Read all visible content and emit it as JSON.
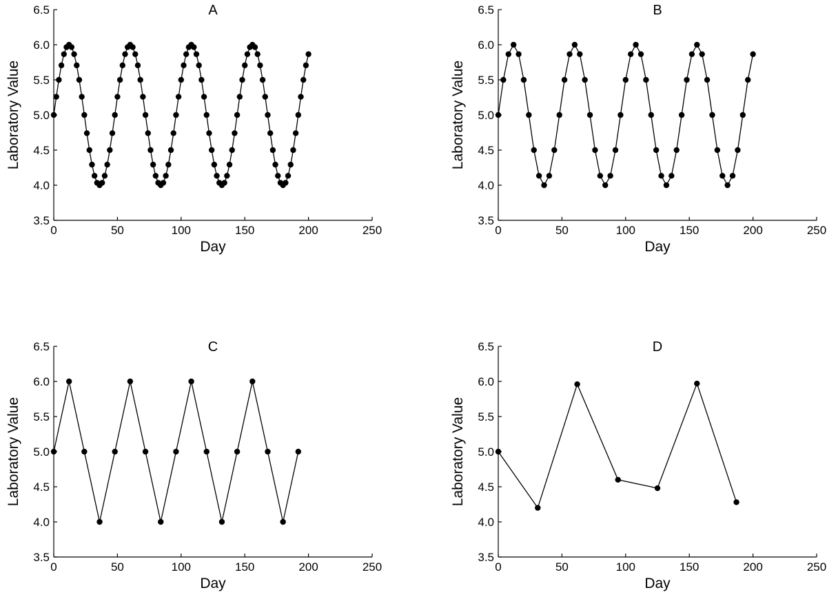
{
  "chart_data": [
    {
      "type": "line",
      "title": "A",
      "xlabel": "Day",
      "ylabel": "Laboratory Value",
      "xlim": [
        0,
        250
      ],
      "ylim": [
        3.5,
        6.5
      ],
      "xticks": [
        0,
        50,
        100,
        150,
        200,
        250
      ],
      "yticks": [
        "3.5",
        "4.0",
        "4.5",
        "5.0",
        "5.5",
        "6.0",
        "6.5"
      ],
      "grid": false,
      "x": [
        0,
        2,
        4,
        6,
        8,
        10,
        12,
        14,
        16,
        18,
        20,
        22,
        24,
        26,
        28,
        30,
        32,
        34,
        36,
        38,
        40,
        42,
        44,
        46,
        48,
        50,
        52,
        54,
        56,
        58,
        60,
        62,
        64,
        66,
        68,
        70,
        72,
        74,
        76,
        78,
        80,
        82,
        84,
        86,
        88,
        90,
        92,
        94,
        96,
        98,
        100,
        102,
        104,
        106,
        108,
        110,
        112,
        114,
        116,
        118,
        120,
        122,
        124,
        126,
        128,
        130,
        132,
        134,
        136,
        138,
        140,
        142,
        144,
        146,
        148,
        150,
        152,
        154,
        156,
        158,
        160,
        162,
        164,
        166,
        168,
        170,
        172,
        174,
        176,
        178,
        180,
        182,
        184,
        186,
        188,
        190,
        192,
        194,
        196,
        198,
        200
      ],
      "values": [
        5.0,
        5.259,
        5.5,
        5.707,
        5.866,
        5.966,
        6.0,
        5.966,
        5.866,
        5.707,
        5.5,
        5.259,
        5.0,
        4.741,
        4.5,
        4.293,
        4.134,
        4.034,
        4.0,
        4.034,
        4.134,
        4.293,
        4.5,
        4.741,
        5.0,
        5.259,
        5.5,
        5.707,
        5.866,
        5.966,
        6.0,
        5.966,
        5.866,
        5.707,
        5.5,
        5.259,
        5.0,
        4.741,
        4.5,
        4.293,
        4.134,
        4.034,
        4.0,
        4.034,
        4.134,
        4.293,
        4.5,
        4.741,
        5.0,
        5.259,
        5.5,
        5.707,
        5.866,
        5.966,
        6.0,
        5.966,
        5.866,
        5.707,
        5.5,
        5.259,
        5.0,
        4.741,
        4.5,
        4.293,
        4.134,
        4.034,
        4.0,
        4.034,
        4.134,
        4.293,
        4.5,
        4.741,
        5.0,
        5.259,
        5.5,
        5.707,
        5.866,
        5.966,
        6.0,
        5.966,
        5.866,
        5.707,
        5.5,
        5.259,
        5.0,
        4.741,
        4.5,
        4.293,
        4.134,
        4.034,
        4.0,
        4.034,
        4.134,
        4.293,
        4.5,
        4.741,
        5.0,
        5.259,
        5.5,
        5.707,
        5.866
      ]
    },
    {
      "type": "line",
      "title": "B",
      "xlabel": "Day",
      "ylabel": "Laboratory Value",
      "xlim": [
        0,
        250
      ],
      "ylim": [
        3.5,
        6.5
      ],
      "xticks": [
        0,
        50,
        100,
        150,
        200,
        250
      ],
      "yticks": [
        "3.5",
        "4.0",
        "4.5",
        "5.0",
        "5.5",
        "6.0",
        "6.5"
      ],
      "grid": false,
      "x": [
        0,
        4,
        8,
        12,
        16,
        20,
        24,
        28,
        32,
        36,
        40,
        44,
        48,
        52,
        56,
        60,
        64,
        68,
        72,
        76,
        80,
        84,
        88,
        92,
        96,
        100,
        104,
        108,
        112,
        116,
        120,
        124,
        128,
        132,
        136,
        140,
        144,
        148,
        152,
        156,
        160,
        164,
        168,
        172,
        176,
        180,
        184,
        188,
        192,
        196,
        200
      ],
      "values": [
        5.0,
        5.5,
        5.866,
        6.0,
        5.866,
        5.5,
        5.0,
        4.5,
        4.134,
        4.0,
        4.134,
        4.5,
        5.0,
        5.5,
        5.866,
        6.0,
        5.866,
        5.5,
        5.0,
        4.5,
        4.134,
        4.0,
        4.134,
        4.5,
        5.0,
        5.5,
        5.866,
        6.0,
        5.866,
        5.5,
        5.0,
        4.5,
        4.134,
        4.0,
        4.134,
        4.5,
        5.0,
        5.5,
        5.866,
        6.0,
        5.866,
        5.5,
        5.0,
        4.5,
        4.134,
        4.0,
        4.134,
        4.5,
        5.0,
        5.5,
        5.866
      ]
    },
    {
      "type": "line",
      "title": "C",
      "xlabel": "Day",
      "ylabel": "Laboratory Value",
      "xlim": [
        0,
        250
      ],
      "ylim": [
        3.5,
        6.5
      ],
      "xticks": [
        0,
        50,
        100,
        150,
        200,
        250
      ],
      "yticks": [
        "3.5",
        "4.0",
        "4.5",
        "5.0",
        "5.5",
        "6.0",
        "6.5"
      ],
      "grid": false,
      "x": [
        0,
        12,
        24,
        36,
        48,
        60,
        72,
        84,
        96,
        108,
        120,
        132,
        144,
        156,
        168,
        180,
        192
      ],
      "values": [
        5.0,
        6.0,
        5.0,
        4.0,
        5.0,
        6.0,
        5.0,
        4.0,
        5.0,
        6.0,
        5.0,
        4.0,
        5.0,
        6.0,
        5.0,
        4.0,
        5.0
      ]
    },
    {
      "type": "line",
      "title": "D",
      "xlabel": "Day",
      "ylabel": "Laboratory Value",
      "xlim": [
        0,
        250
      ],
      "ylim": [
        3.5,
        6.5
      ],
      "xticks": [
        0,
        50,
        100,
        150,
        200,
        250
      ],
      "yticks": [
        "3.5",
        "4.0",
        "4.5",
        "5.0",
        "5.5",
        "6.0",
        "6.5"
      ],
      "grid": false,
      "x": [
        0,
        31,
        62,
        94,
        125,
        156,
        187
      ],
      "values": [
        5.0,
        4.2,
        5.96,
        4.6,
        4.48,
        5.97,
        4.28
      ]
    }
  ]
}
